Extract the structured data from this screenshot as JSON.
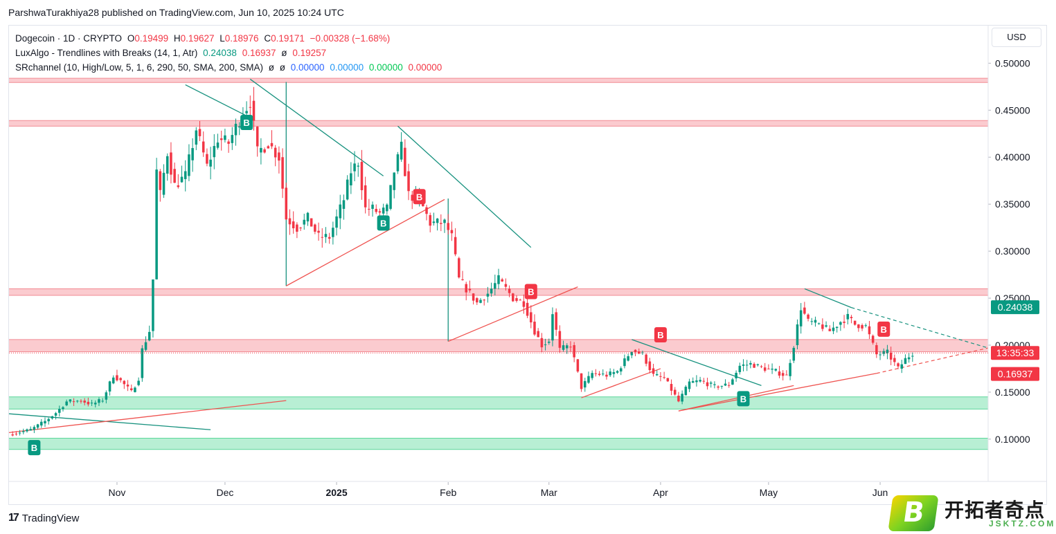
{
  "header": {
    "text": "ParshwaTurakhiya28 published on TradingView.com, Jun 10, 2025 10:24 UTC"
  },
  "legend": {
    "symbol": "Dogecoin · 1D · CRYPTO",
    "open_label": "O",
    "open": "0.19499",
    "high_label": "H",
    "high": "0.19627",
    "low_label": "L",
    "low": "0.18976",
    "close_label": "C",
    "close": "0.19171",
    "change": "−0.00328 (−1.68%)",
    "indicator1_name": "LuxAlgo - Trendlines with Breaks (14, 1, Atr)",
    "indicator1_v1": "0.24038",
    "indicator1_v2": "0.16937",
    "indicator1_v3": "ø",
    "indicator1_v4": "0.19257",
    "indicator2_name": "SRchannel (10, High/Low, 5, 1, 6, 290, 50, SMA, 200, SMA)",
    "indicator2_v1": "ø",
    "indicator2_v2": "ø",
    "indicator2_v3": "0.00000",
    "indicator2_v4": "0.00000",
    "indicator2_v5": "0.00000",
    "indicator2_v6": "0.00000"
  },
  "currency": "USD",
  "footer": {
    "brand": "TradingView"
  },
  "watermark": {
    "cn": "开拓者奇点",
    "latin": "JSKTZ.COM",
    "badge": "B"
  },
  "colors": {
    "up": "#089981",
    "down": "#f23645",
    "resistance": "#f7a1a8",
    "support": "#7ee2b0",
    "trend_green": "#16917e",
    "trend_red": "#ef5350"
  },
  "chart_data": {
    "type": "candlestick",
    "title": "Dogecoin · 1D · CRYPTO",
    "ylim": [
      0.055,
      0.54
    ],
    "y_ticks": [
      "0.10000",
      "0.15000",
      "0.20000",
      "0.25000",
      "0.30000",
      "0.35000",
      "0.40000",
      "0.45000",
      "0.50000"
    ],
    "x_ticks": [
      {
        "label": "Nov",
        "date": "2024-11-01"
      },
      {
        "label": "Dec",
        "date": "2024-12-01"
      },
      {
        "label": "2025",
        "date": "2025-01-01",
        "bold": true
      },
      {
        "label": "Feb",
        "date": "2025-02-01"
      },
      {
        "label": "Mar",
        "date": "2025-03-01"
      },
      {
        "label": "Apr",
        "date": "2025-04-01"
      },
      {
        "label": "May",
        "date": "2025-05-01"
      },
      {
        "label": "Jun",
        "date": "2025-06-01"
      }
    ],
    "x_range": [
      "2024-10-02",
      "2025-07-01"
    ],
    "price_labels": [
      {
        "value": 0.24038,
        "text": "0.24038",
        "color": "#089981"
      },
      {
        "value": 0.19171,
        "text": "13:35:33",
        "color": "#f23645"
      },
      {
        "value": 0.16937,
        "text": "0.16937",
        "color": "#f23645"
      }
    ],
    "sr_zones": [
      {
        "kind": "resistance",
        "low": 0.4795,
        "high": 0.484
      },
      {
        "kind": "resistance",
        "low": 0.433,
        "high": 0.439
      },
      {
        "kind": "resistance",
        "low": 0.253,
        "high": 0.26
      },
      {
        "kind": "resistance",
        "low": 0.193,
        "high": 0.206
      },
      {
        "kind": "support",
        "low": 0.132,
        "high": 0.145
      },
      {
        "kind": "support",
        "low": 0.089,
        "high": 0.101
      }
    ],
    "trendlines": [
      {
        "color": "green",
        "from": [
          "2024-10-02",
          0.127
        ],
        "to": [
          "2024-11-27",
          0.11
        ]
      },
      {
        "color": "red",
        "from": [
          "2024-10-02",
          0.107
        ],
        "to": [
          "2024-12-18",
          0.141
        ]
      },
      {
        "color": "green",
        "from": [
          "2024-11-20",
          0.477
        ],
        "to": [
          "2024-12-07",
          0.444
        ]
      },
      {
        "color": "green",
        "from": [
          "2024-12-08",
          0.483
        ],
        "to": [
          "2025-01-14",
          0.38
        ]
      },
      {
        "color": "green",
        "from": [
          "2025-01-18",
          0.433
        ],
        "to": [
          "2025-02-24",
          0.304
        ]
      },
      {
        "color": "green",
        "from": [
          "2024-12-18",
          0.48
        ],
        "to": [
          "2024-12-18",
          0.263
        ]
      },
      {
        "color": "red",
        "from": [
          "2024-12-18",
          0.263
        ],
        "to": [
          "2025-01-31",
          0.355
        ]
      },
      {
        "color": "green",
        "from": [
          "2025-02-01",
          0.356
        ],
        "to": [
          "2025-02-01",
          0.204
        ]
      },
      {
        "color": "red",
        "from": [
          "2025-02-01",
          0.204
        ],
        "to": [
          "2025-03-09",
          0.262
        ]
      },
      {
        "color": "green",
        "from": [
          "2025-03-24",
          0.206
        ],
        "to": [
          "2025-04-29",
          0.157
        ]
      },
      {
        "color": "red",
        "from": [
          "2025-03-10",
          0.144
        ],
        "to": [
          "2025-04-01",
          0.175
        ]
      },
      {
        "color": "red",
        "from": [
          "2025-04-06",
          0.13
        ],
        "to": [
          "2025-05-08",
          0.157
        ]
      },
      {
        "color": "red",
        "from": [
          "2025-04-06",
          0.13
        ],
        "to": [
          "2025-05-31",
          0.17
        ],
        "extend_to": [
          "2025-07-01",
          0.197
        ]
      },
      {
        "color": "green",
        "from": [
          "2025-05-11",
          0.26
        ],
        "to": [
          "2025-05-24",
          0.24
        ],
        "extend_to": [
          "2025-07-01",
          0.197
        ]
      }
    ],
    "break_markers": [
      {
        "date": "2024-10-09",
        "price": 0.091,
        "type": "B",
        "color": "up"
      },
      {
        "date": "2024-12-07",
        "price": 0.437,
        "type": "B",
        "color": "up"
      },
      {
        "date": "2025-01-14",
        "price": 0.33,
        "type": "B",
        "color": "up"
      },
      {
        "date": "2025-01-24",
        "price": 0.358,
        "type": "B",
        "color": "down"
      },
      {
        "date": "2025-02-24",
        "price": 0.257,
        "type": "B",
        "color": "down"
      },
      {
        "date": "2025-04-01",
        "price": 0.211,
        "type": "B",
        "color": "down"
      },
      {
        "date": "2025-04-24",
        "price": 0.143,
        "type": "B",
        "color": "up"
      },
      {
        "date": "2025-06-02",
        "price": 0.217,
        "type": "B",
        "color": "down"
      }
    ],
    "closes": [
      {
        "d": "2024-10-02",
        "c": 0.105
      },
      {
        "d": "2024-10-08",
        "c": 0.11
      },
      {
        "d": "2024-10-12",
        "c": 0.119
      },
      {
        "d": "2024-10-15",
        "c": 0.128
      },
      {
        "d": "2024-10-18",
        "c": 0.14
      },
      {
        "d": "2024-10-22",
        "c": 0.141
      },
      {
        "d": "2024-10-25",
        "c": 0.137
      },
      {
        "d": "2024-10-28",
        "c": 0.142
      },
      {
        "d": "2024-10-31",
        "c": 0.168
      },
      {
        "d": "2024-11-02",
        "c": 0.162
      },
      {
        "d": "2024-11-05",
        "c": 0.15
      },
      {
        "d": "2024-11-07",
        "c": 0.165
      },
      {
        "d": "2024-11-08",
        "c": 0.195
      },
      {
        "d": "2024-11-10",
        "c": 0.215
      },
      {
        "d": "2024-11-11",
        "c": 0.27
      },
      {
        "d": "2024-11-12",
        "c": 0.385
      },
      {
        "d": "2024-11-13",
        "c": 0.36
      },
      {
        "d": "2024-11-15",
        "c": 0.405
      },
      {
        "d": "2024-11-17",
        "c": 0.37
      },
      {
        "d": "2024-11-20",
        "c": 0.38
      },
      {
        "d": "2024-11-23",
        "c": 0.43
      },
      {
        "d": "2024-11-26",
        "c": 0.39
      },
      {
        "d": "2024-11-29",
        "c": 0.42
      },
      {
        "d": "2024-12-02",
        "c": 0.415
      },
      {
        "d": "2024-12-05",
        "c": 0.44
      },
      {
        "d": "2024-12-08",
        "c": 0.46
      },
      {
        "d": "2024-12-10",
        "c": 0.405
      },
      {
        "d": "2024-12-13",
        "c": 0.415
      },
      {
        "d": "2024-12-16",
        "c": 0.4
      },
      {
        "d": "2024-12-18",
        "c": 0.335
      },
      {
        "d": "2024-12-21",
        "c": 0.325
      },
      {
        "d": "2024-12-24",
        "c": 0.335
      },
      {
        "d": "2024-12-27",
        "c": 0.315
      },
      {
        "d": "2024-12-30",
        "c": 0.315
      },
      {
        "d": "2025-01-03",
        "c": 0.355
      },
      {
        "d": "2025-01-05",
        "c": 0.385
      },
      {
        "d": "2025-01-07",
        "c": 0.395
      },
      {
        "d": "2025-01-09",
        "c": 0.345
      },
      {
        "d": "2025-01-11",
        "c": 0.345
      },
      {
        "d": "2025-01-13",
        "c": 0.34
      },
      {
        "d": "2025-01-15",
        "c": 0.345
      },
      {
        "d": "2025-01-17",
        "c": 0.385
      },
      {
        "d": "2025-01-19",
        "c": 0.41
      },
      {
        "d": "2025-01-21",
        "c": 0.36
      },
      {
        "d": "2025-01-24",
        "c": 0.355
      },
      {
        "d": "2025-01-27",
        "c": 0.33
      },
      {
        "d": "2025-01-31",
        "c": 0.33
      },
      {
        "d": "2025-02-02",
        "c": 0.315
      },
      {
        "d": "2025-02-04",
        "c": 0.27
      },
      {
        "d": "2025-02-06",
        "c": 0.26
      },
      {
        "d": "2025-02-09",
        "c": 0.245
      },
      {
        "d": "2025-02-12",
        "c": 0.255
      },
      {
        "d": "2025-02-15",
        "c": 0.27
      },
      {
        "d": "2025-02-19",
        "c": 0.25
      },
      {
        "d": "2025-02-22",
        "c": 0.245
      },
      {
        "d": "2025-02-25",
        "c": 0.215
      },
      {
        "d": "2025-02-27",
        "c": 0.2
      },
      {
        "d": "2025-03-01",
        "c": 0.205
      },
      {
        "d": "2025-03-02",
        "c": 0.235
      },
      {
        "d": "2025-03-04",
        "c": 0.195
      },
      {
        "d": "2025-03-07",
        "c": 0.2
      },
      {
        "d": "2025-03-10",
        "c": 0.155
      },
      {
        "d": "2025-03-13",
        "c": 0.17
      },
      {
        "d": "2025-03-17",
        "c": 0.168
      },
      {
        "d": "2025-03-20",
        "c": 0.172
      },
      {
        "d": "2025-03-24",
        "c": 0.195
      },
      {
        "d": "2025-03-27",
        "c": 0.19
      },
      {
        "d": "2025-03-30",
        "c": 0.168
      },
      {
        "d": "2025-04-02",
        "c": 0.165
      },
      {
        "d": "2025-04-06",
        "c": 0.14
      },
      {
        "d": "2025-04-09",
        "c": 0.16
      },
      {
        "d": "2025-04-12",
        "c": 0.162
      },
      {
        "d": "2025-04-16",
        "c": 0.156
      },
      {
        "d": "2025-04-20",
        "c": 0.158
      },
      {
        "d": "2025-04-23",
        "c": 0.178
      },
      {
        "d": "2025-04-26",
        "c": 0.18
      },
      {
        "d": "2025-04-30",
        "c": 0.175
      },
      {
        "d": "2025-05-03",
        "c": 0.172
      },
      {
        "d": "2025-05-06",
        "c": 0.167
      },
      {
        "d": "2025-05-08",
        "c": 0.2
      },
      {
        "d": "2025-05-10",
        "c": 0.24
      },
      {
        "d": "2025-05-12",
        "c": 0.225
      },
      {
        "d": "2025-05-15",
        "c": 0.222
      },
      {
        "d": "2025-05-18",
        "c": 0.215
      },
      {
        "d": "2025-05-21",
        "c": 0.225
      },
      {
        "d": "2025-05-23",
        "c": 0.23
      },
      {
        "d": "2025-05-25",
        "c": 0.222
      },
      {
        "d": "2025-05-28",
        "c": 0.22
      },
      {
        "d": "2025-05-31",
        "c": 0.19
      },
      {
        "d": "2025-06-03",
        "c": 0.192
      },
      {
        "d": "2025-06-06",
        "c": 0.175
      },
      {
        "d": "2025-06-08",
        "c": 0.185
      },
      {
        "d": "2025-06-10",
        "c": 0.19171
      }
    ]
  }
}
